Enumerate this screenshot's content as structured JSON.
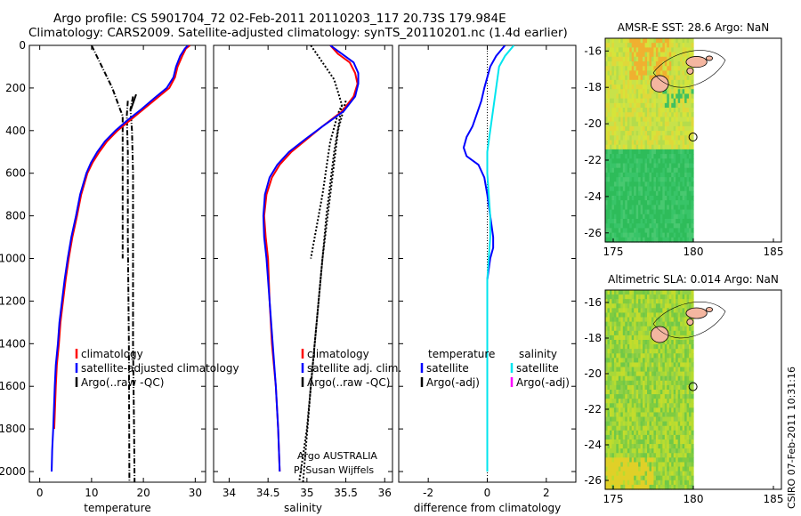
{
  "header": {
    "title_line1": "Argo profile: CS 5901704_72 02-Feb-2011 20110203_117 20.73S 179.984E",
    "title_line2": "Climatology: CARS2009. Satellite-adjusted climatology: synTS_20110201.nc (1.4d earlier)"
  },
  "footer": {
    "side_label": "CSIRO 07-Feb-2011 10:31:16"
  },
  "annotations": {
    "owner_line1": "Argo AUSTRALIA",
    "owner_line2": "PI Susan Wijffels"
  },
  "colors": {
    "climatology": "#ff0000",
    "satellite": "#0000ff",
    "argo": "#000000",
    "satellite_salinity": "#00e5ee",
    "argo_adj_salinity": "#ff00ff",
    "land": "#f4b6a0"
  },
  "chart_data": [
    {
      "type": "line",
      "id": "temperature",
      "xlabel": "temperature",
      "ylabel": "",
      "xlim": [
        -2,
        32
      ],
      "ylim": [
        2050,
        0
      ],
      "xticks": [
        "0",
        "10",
        "20",
        "30"
      ],
      "yticks": [
        "0",
        "200",
        "400",
        "600",
        "800",
        "1000",
        "1200",
        "1400",
        "1600",
        "1800",
        "2000"
      ],
      "legend": [
        "climatology",
        "satellite-adjusted climatology",
        "Argo(..raw -QC)"
      ],
      "legend_placement": "lower-right",
      "series": [
        {
          "name": "climatology",
          "color": "red",
          "points": [
            [
              29,
              0
            ],
            [
              28.2,
              15
            ],
            [
              27.5,
              50
            ],
            [
              26.6,
              100
            ],
            [
              26.1,
              150
            ],
            [
              25,
              200
            ],
            [
              22.5,
              250
            ],
            [
              20,
              300
            ],
            [
              17.5,
              350
            ],
            [
              15,
              400
            ],
            [
              13,
              450
            ],
            [
              11.5,
              500
            ],
            [
              10.2,
              550
            ],
            [
              9.2,
              600
            ],
            [
              8,
              700
            ],
            [
              7.2,
              800
            ],
            [
              6.3,
              900
            ],
            [
              5.6,
              1000
            ],
            [
              5,
              1100
            ],
            [
              4.5,
              1200
            ],
            [
              4,
              1300
            ],
            [
              3.7,
              1400
            ],
            [
              3.3,
              1500
            ],
            [
              3.1,
              1600
            ],
            [
              2.8,
              1800
            ]
          ]
        },
        {
          "name": "satellite-adjusted climatology",
          "color": "blue",
          "points": [
            [
              28.6,
              0
            ],
            [
              28,
              15
            ],
            [
              27.1,
              50
            ],
            [
              26.3,
              100
            ],
            [
              25.8,
              150
            ],
            [
              24.5,
              200
            ],
            [
              22,
              250
            ],
            [
              19.6,
              300
            ],
            [
              17,
              350
            ],
            [
              14.6,
              400
            ],
            [
              12.6,
              450
            ],
            [
              11.1,
              500
            ],
            [
              9.9,
              550
            ],
            [
              9,
              600
            ],
            [
              7.8,
              700
            ],
            [
              7,
              800
            ],
            [
              6.1,
              900
            ],
            [
              5.4,
              1000
            ],
            [
              4.8,
              1100
            ],
            [
              4.3,
              1200
            ],
            [
              3.8,
              1300
            ],
            [
              3.5,
              1400
            ],
            [
              3.1,
              1500
            ],
            [
              2.9,
              1600
            ],
            [
              2.6,
              1800
            ],
            [
              2.4,
              1900
            ],
            [
              2.3,
              2000
            ]
          ]
        }
      ]
    },
    {
      "type": "line",
      "id": "salinity",
      "xlabel": "salinity",
      "ylabel": "",
      "xlim": [
        33.8,
        36.1
      ],
      "ylim": [
        2050,
        0
      ],
      "xticks": [
        "34",
        "34.5",
        "35",
        "35.5",
        "36"
      ],
      "legend": [
        "climatology",
        "satellite adj. clim.",
        "Argo(..raw -QC)"
      ],
      "legend_placement": "lower-right",
      "series": [
        {
          "name": "climatology",
          "color": "red",
          "points": [
            [
              35.3,
              0
            ],
            [
              35.4,
              40
            ],
            [
              35.55,
              80
            ],
            [
              35.62,
              130
            ],
            [
              35.65,
              180
            ],
            [
              35.6,
              240
            ],
            [
              35.45,
              310
            ],
            [
              35.2,
              380
            ],
            [
              35,
              440
            ],
            [
              34.8,
              500
            ],
            [
              34.65,
              560
            ],
            [
              34.55,
              620
            ],
            [
              34.48,
              700
            ],
            [
              34.45,
              800
            ],
            [
              34.47,
              900
            ],
            [
              34.5,
              1000
            ],
            [
              34.52,
              1200
            ],
            [
              34.55,
              1400
            ],
            [
              34.6,
              1600
            ],
            [
              34.63,
              1800
            ],
            [
              34.65,
              2000
            ]
          ]
        },
        {
          "name": "satellite adj. clim.",
          "color": "blue",
          "points": [
            [
              35.3,
              0
            ],
            [
              35.45,
              40
            ],
            [
              35.6,
              80
            ],
            [
              35.66,
              130
            ],
            [
              35.66,
              180
            ],
            [
              35.62,
              240
            ],
            [
              35.47,
              310
            ],
            [
              35.2,
              380
            ],
            [
              34.98,
              440
            ],
            [
              34.77,
              500
            ],
            [
              34.62,
              560
            ],
            [
              34.52,
              620
            ],
            [
              34.46,
              700
            ],
            [
              34.44,
              800
            ],
            [
              34.45,
              900
            ],
            [
              34.48,
              1000
            ],
            [
              34.52,
              1200
            ],
            [
              34.56,
              1400
            ],
            [
              34.6,
              1600
            ],
            [
              34.63,
              1800
            ],
            [
              34.65,
              2000
            ]
          ]
        }
      ]
    },
    {
      "type": "line",
      "id": "difference",
      "xlabel": "difference from climatology",
      "ylabel": "",
      "xlim": [
        -3,
        3
      ],
      "ylim": [
        2050,
        0
      ],
      "xticks": [
        "-2",
        "0",
        "2"
      ],
      "legend": [
        "temperature",
        "satellite",
        "Argo(-adj)",
        "salinity",
        "satellite",
        "Argo(-adj)"
      ],
      "legend_placement": "lower",
      "series": [
        {
          "name": "satellite",
          "color": "blue",
          "points": [
            [
              0.6,
              0
            ],
            [
              0.3,
              50
            ],
            [
              0.1,
              100
            ],
            [
              0,
              150
            ],
            [
              -0.1,
              200
            ],
            [
              -0.2,
              260
            ],
            [
              -0.35,
              320
            ],
            [
              -0.5,
              380
            ],
            [
              -0.7,
              430
            ],
            [
              -0.8,
              480
            ],
            [
              -0.7,
              520
            ],
            [
              -0.3,
              560
            ],
            [
              -0.1,
              620
            ],
            [
              0,
              700
            ],
            [
              0.1,
              800
            ],
            [
              0.2,
              900
            ],
            [
              0.2,
              950
            ],
            [
              0.1,
              1000
            ],
            [
              0,
              1100
            ],
            [
              0,
              1200
            ],
            [
              0,
              1400
            ],
            [
              0,
              1600
            ],
            [
              0,
              1800
            ],
            [
              0,
              2000
            ]
          ]
        },
        {
          "name": "satellite",
          "color": "cyan",
          "points": [
            [
              0.9,
              0
            ],
            [
              0.6,
              50
            ],
            [
              0.4,
              100
            ],
            [
              0.3,
              200
            ],
            [
              0.2,
              300
            ],
            [
              0.1,
              400
            ],
            [
              0,
              500
            ],
            [
              0,
              600
            ],
            [
              0.05,
              700
            ],
            [
              0.1,
              800
            ],
            [
              0.1,
              900
            ],
            [
              0.05,
              1000
            ],
            [
              0,
              1100
            ],
            [
              0,
              1300
            ],
            [
              0,
              1600
            ],
            [
              0,
              1800
            ],
            [
              0,
              2000
            ]
          ]
        }
      ]
    },
    {
      "type": "heatmap",
      "id": "amsr-sst",
      "title": "AMSR-E SST: 28.6 Argo: NaN",
      "xlim": [
        174.5,
        185.5
      ],
      "ylim": [
        -26.5,
        -15.3
      ],
      "xticks": [
        "175",
        "180",
        "185"
      ],
      "yticks": [
        "-16",
        "-18",
        "-20",
        "-22",
        "-24",
        "-26"
      ],
      "argo_position": [
        179.98,
        -20.73
      ]
    },
    {
      "type": "heatmap",
      "id": "altimetric-sla",
      "title": "Altimetric SLA: 0.014 Argo: NaN",
      "xlim": [
        174.5,
        185.5
      ],
      "ylim": [
        -26.5,
        -15.3
      ],
      "xticks": [
        "175",
        "180",
        "185"
      ],
      "yticks": [
        "-16",
        "-18",
        "-20",
        "-22",
        "-24",
        "-26"
      ],
      "argo_position": [
        179.98,
        -20.73
      ]
    }
  ]
}
